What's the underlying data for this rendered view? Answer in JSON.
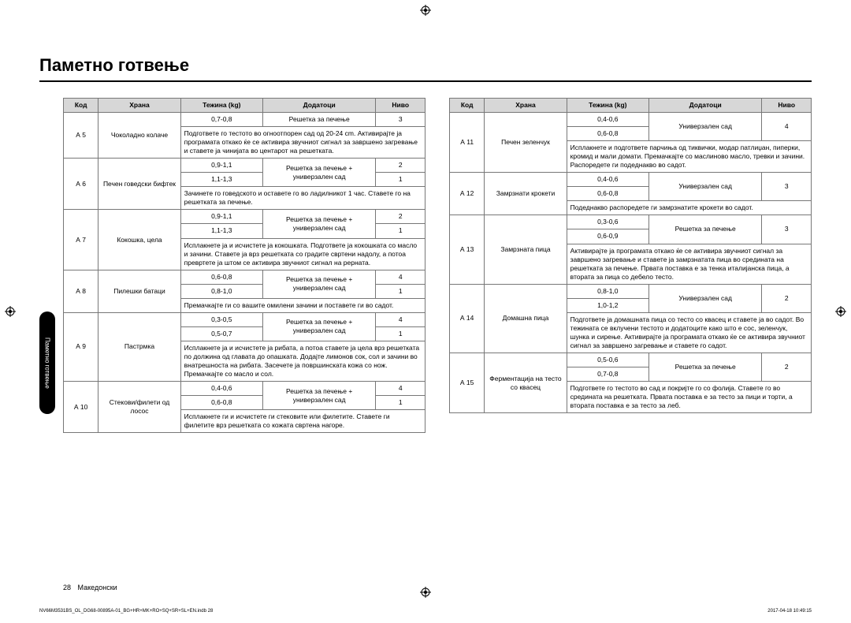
{
  "title": "Паметно готвење",
  "side_tab": "Паметно готвење",
  "headers": {
    "code": "Код",
    "food": "Храна",
    "weight": "Тежина (kg)",
    "extras": "Додатоци",
    "level": "Ниво"
  },
  "left": [
    {
      "code": "А 5",
      "food": "Чоколадно колаче",
      "rows": [
        {
          "w": "0,7-0,8",
          "ex": "Решетка за печење",
          "lv": "3"
        }
      ],
      "note": "Подгответе го тестото во огноотпорен сад од 20-24 cm. Активирајте ја програмата откако ќе се активира звучниот сигнал за завршено загревање и ставете ја чинијата во центарот на решетката."
    },
    {
      "code": "А 6",
      "food": "Печен говедски бифтек",
      "rows": [
        {
          "w": "0,9-1,1",
          "ex": "Решетка за печење + универзален сад",
          "lv": "2",
          "exspan": 2
        },
        {
          "w": "1,1-1,3",
          "lv": "1"
        }
      ],
      "note": "Зачинете го говедското и оставете го во ладилникот 1 час. Ставете го на решетката за печење."
    },
    {
      "code": "А 7",
      "food": "Кокошка, цела",
      "rows": [
        {
          "w": "0,9-1,1",
          "ex": "Решетка за печење + универзален сад",
          "lv": "2",
          "exspan": 2
        },
        {
          "w": "1,1-1,3",
          "lv": "1"
        }
      ],
      "note": "Исплакнете ја и исчистете ја кокошката. Подгответе ја кокошката со масло и зачини. Ставете ја врз решетката со градите свртени надолу, а потоа превртете ја штом се активира звучниот сигнал на рерната."
    },
    {
      "code": "А 8",
      "food": "Пилешки батаци",
      "rows": [
        {
          "w": "0,6-0,8",
          "ex": "Решетка за печење + универзален сад",
          "lv": "4",
          "exspan": 2
        },
        {
          "w": "0,8-1,0",
          "lv": "1"
        }
      ],
      "note": "Премачкајте ги со вашите омилени зачини и поставете ги во садот."
    },
    {
      "code": "А 9",
      "food": "Пастрмка",
      "rows": [
        {
          "w": "0,3-0,5",
          "ex": "Решетка за печење + универзален сад",
          "lv": "4",
          "exspan": 2
        },
        {
          "w": "0,5-0,7",
          "lv": "1"
        }
      ],
      "note": "Исплакнете ја и исчистете ја рибата, а потоа ставете ја цела врз решетката по должина од главата до опашката. Додајте лимонов сок, сол и зачини во внатрешноста на рибата. Засечете ја површинската кожа со нож. Премачкајте со масло и сол."
    },
    {
      "code": "А 10",
      "food": "Стекови/филети од лосос",
      "rows": [
        {
          "w": "0,4-0,6",
          "ex": "Решетка за печење + универзален сад",
          "lv": "4",
          "exspan": 2
        },
        {
          "w": "0,6-0,8",
          "lv": "1"
        }
      ],
      "note": "Исплакнете ги и исчистете ги стековите или филетите. Ставете ги филетите врз решетката со кожата свртена нагоре."
    }
  ],
  "right": [
    {
      "code": "А 11",
      "food": "Печен зеленчук",
      "rows": [
        {
          "w": "0,4-0,6",
          "ex": "Универзален сад",
          "lv": "4",
          "exspan": 2,
          "lvspan": 2
        },
        {
          "w": "0,6-0,8"
        }
      ],
      "note": "Исплакнете и подгответе парчиња од тиквички, модар патлиџан, пиперки, кромид и мали домати. Премачкајте со маслиново масло, тревки и зачини. Распоредете ги подеднакво во садот."
    },
    {
      "code": "А 12",
      "food": "Замрзнати крокети",
      "rows": [
        {
          "w": "0,4-0,6",
          "ex": "Универзален сад",
          "lv": "3",
          "exspan": 2,
          "lvspan": 2
        },
        {
          "w": "0,6-0,8"
        }
      ],
      "note": "Подеднакво распоредете ги замрзнатите крокети во садот."
    },
    {
      "code": "А 13",
      "food": "Замрзната пица",
      "rows": [
        {
          "w": "0,3-0,6",
          "ex": "Решетка за печење",
          "lv": "3",
          "exspan": 2,
          "lvspan": 2
        },
        {
          "w": "0,6-0,9"
        }
      ],
      "note": "Активирајте ја програмата откако ќе се активира звучниот сигнал за завршено загревање и ставете ја замрзнатата пица во средината на решетката за печење. Првата поставка е за тенка италијанска пица, а втората за пица со дебело тесто."
    },
    {
      "code": "А 14",
      "food": "Домашна пица",
      "rows": [
        {
          "w": "0,8-1,0",
          "ex": "Универзален сад",
          "lv": "2",
          "exspan": 2,
          "lvspan": 2
        },
        {
          "w": "1,0-1,2"
        }
      ],
      "note": "Подгответе ја домашната пица со тесто со квасец и ставете ја во садот. Во тежината се вклучени тестото и додатоците како што е сос, зеленчук, шунка и сирење. Активирајте ја програмата откако ќе се активира звучниот сигнал за завршено загревање и ставете го садот."
    },
    {
      "code": "А 15",
      "food": "Ферментација на тесто со квасец",
      "rows": [
        {
          "w": "0,5-0,6",
          "ex": "Решетка за печење",
          "lv": "2",
          "exspan": 2,
          "lvspan": 2
        },
        {
          "w": "0,7-0,8"
        }
      ],
      "note": "Подгответе го тестото во сад и покријте го со фолија. Ставете го во средината на решетката. Првата поставка е за тесто за пици и торти, а втората поставка е за тесто за леб."
    }
  ],
  "footer": {
    "page_num": "28",
    "page_lang": "Македонски",
    "doc_code": "NV66M3531BS_OL_DG68-00895A-01_BG+HR+MK+RO+SQ+SR+SL+EN.indb   28",
    "timestamp": "2017-04-18   10:49:15"
  }
}
